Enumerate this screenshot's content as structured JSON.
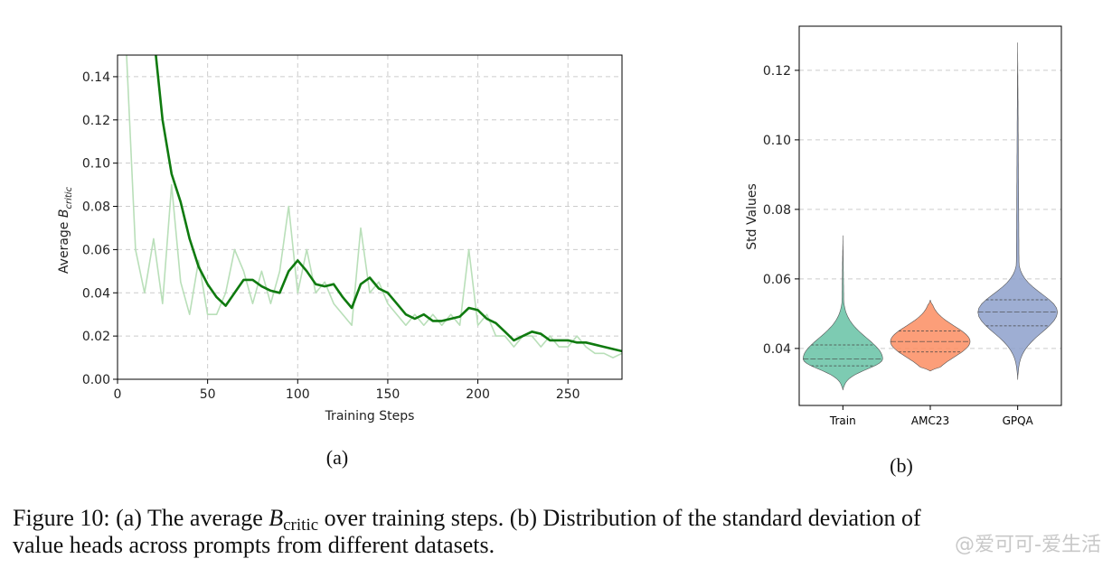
{
  "chart_data": [
    {
      "type": "line",
      "panel_label": "(a)",
      "xlabel": "Training Steps",
      "ylabel": "Average ",
      "ylabel_symbol": "B",
      "ylabel_subscript": "critic",
      "xlim": [
        0,
        280
      ],
      "ylim": [
        0,
        0.15
      ],
      "xticks": [
        0,
        50,
        100,
        150,
        200,
        250
      ],
      "yticks": [
        {
          "value": 0,
          "label": "0.00"
        },
        0.02,
        0.04,
        0.06,
        0.08,
        {
          "value": 0.1,
          "label": "0.10"
        },
        0.12,
        0.14
      ],
      "grid": true,
      "x": [
        5,
        10,
        15,
        20,
        25,
        30,
        35,
        40,
        45,
        50,
        55,
        60,
        65,
        70,
        75,
        80,
        85,
        90,
        95,
        100,
        105,
        110,
        115,
        120,
        125,
        130,
        135,
        140,
        145,
        150,
        155,
        160,
        165,
        170,
        175,
        180,
        185,
        190,
        195,
        200,
        205,
        210,
        215,
        220,
        225,
        230,
        235,
        240,
        245,
        250,
        255,
        260,
        265,
        270,
        275,
        280
      ],
      "series": [
        {
          "color": "#b9dfb9",
          "values": [
            0.15,
            0.06,
            0.04,
            0.065,
            0.035,
            0.09,
            0.045,
            0.03,
            0.055,
            0.03,
            0.03,
            0.04,
            0.06,
            0.05,
            0.035,
            0.05,
            0.035,
            0.05,
            0.08,
            0.04,
            0.06,
            0.04,
            0.045,
            0.035,
            0.03,
            0.025,
            0.07,
            0.04,
            0.045,
            0.035,
            0.03,
            0.025,
            0.03,
            0.025,
            0.03,
            0.025,
            0.03,
            0.025,
            0.06,
            0.025,
            0.03,
            0.02,
            0.02,
            0.015,
            0.02,
            0.02,
            0.015,
            0.02,
            0.015,
            0.015,
            0.02,
            0.015,
            0.012,
            0.012,
            0.01,
            0.012
          ]
        },
        {
          "color": "#0f7a0f",
          "values": [
            null,
            null,
            null,
            0.16,
            0.12,
            0.095,
            0.082,
            0.065,
            0.052,
            0.044,
            0.038,
            0.034,
            0.04,
            0.046,
            0.046,
            0.043,
            0.041,
            0.04,
            0.05,
            0.055,
            0.05,
            0.044,
            0.043,
            0.044,
            0.038,
            0.033,
            0.044,
            0.047,
            0.042,
            0.04,
            0.035,
            0.03,
            0.028,
            0.03,
            0.027,
            0.027,
            0.028,
            0.029,
            0.033,
            0.032,
            0.028,
            0.026,
            0.022,
            0.018,
            0.02,
            0.022,
            0.021,
            0.018,
            0.018,
            0.018,
            0.017,
            0.017,
            0.016,
            0.015,
            0.014,
            0.013
          ]
        }
      ]
    },
    {
      "type": "violin",
      "panel_label": "(b)",
      "ylabel": "Std Values",
      "ylim": [
        0.0236,
        0.1327
      ],
      "yticks": [
        0.04,
        0.06,
        0.08,
        {
          "value": 0.1,
          "label": "0.10"
        },
        0.12
      ],
      "grid": true,
      "categories": [
        "Train",
        "AMC23",
        "GPQA"
      ],
      "colors": [
        "#66c2a5",
        "#fc8d62",
        "#8da0cb"
      ],
      "min": [
        0.028,
        0.0335,
        0.031
      ],
      "q1": [
        0.035,
        0.039,
        0.0465
      ],
      "median": [
        0.037,
        0.042,
        0.0505
      ],
      "q3": [
        0.041,
        0.045,
        0.054
      ],
      "max": [
        0.0725,
        0.054,
        0.128
      ]
    }
  ],
  "caption": {
    "line1_before": "Figure 10: (a) The average ",
    "symbol": "B",
    "subscript": "critic",
    "line1_after": " over training steps. (b) Distribution of the standard deviation of",
    "line2": "value heads across prompts from different datasets."
  },
  "watermark": "@爱可可-爱生活"
}
